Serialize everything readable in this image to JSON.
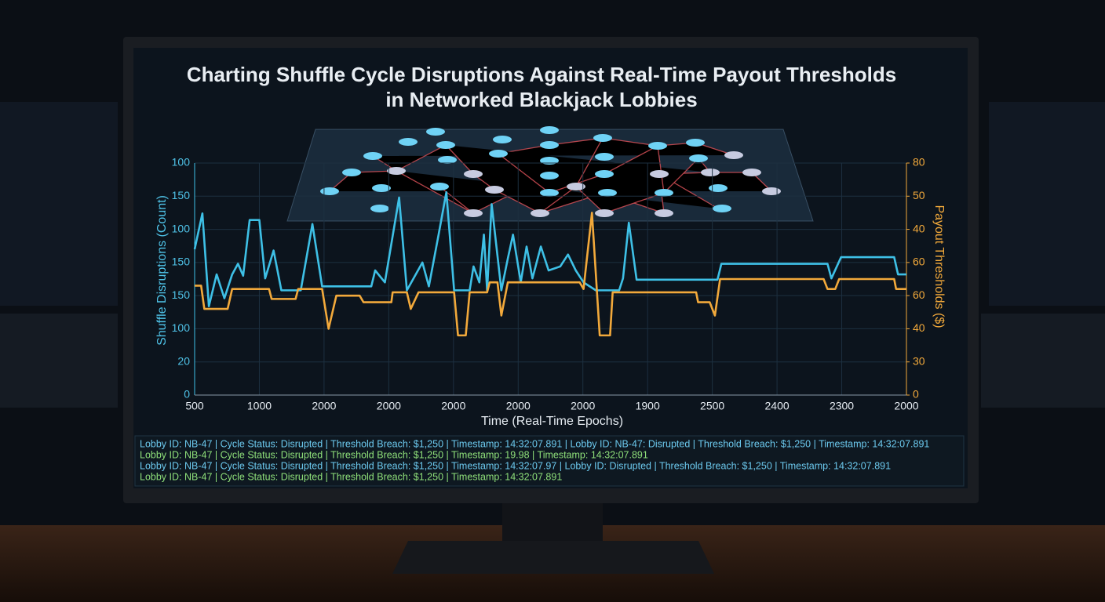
{
  "chart_data": {
    "type": "line",
    "title": "Charting Shuffle Cycle Disruptions Against Real-Time Payout Thresholds",
    "subtitle": "in Networked Blackjack Lobbies",
    "x_label": "Time (Real-Time Epochs)",
    "y_label": "Shuffle Disruptions (Count)",
    "y2_label": "Payout Thresholds ($)",
    "xlim": [
      0,
      11
    ],
    "xticks": [
      {
        "value": 0,
        "label": "500"
      },
      {
        "value": 1,
        "label": "1000"
      },
      {
        "value": 2,
        "label": "2000"
      },
      {
        "value": 3,
        "label": "2000"
      },
      {
        "value": 4,
        "label": "2000"
      },
      {
        "value": 5,
        "label": "2000"
      },
      {
        "value": 6,
        "label": "2000"
      },
      {
        "value": 7,
        "label": "1900"
      },
      {
        "value": 8,
        "label": "2500"
      },
      {
        "value": 9,
        "label": "2400"
      },
      {
        "value": 10,
        "label": "2300"
      },
      {
        "value": 11,
        "label": "2000"
      }
    ],
    "ylim": [
      0,
      175
    ],
    "yticks": [
      0,
      {
        "value": 25,
        "label": "20"
      },
      {
        "value": 50,
        "label": "100"
      },
      {
        "value": 75,
        "label": "150"
      },
      {
        "value": 100,
        "label": "150"
      },
      {
        "value": 125,
        "label": "100"
      },
      {
        "value": 150,
        "label": "150"
      },
      {
        "value": 175,
        "label": "100"
      }
    ],
    "y2lim": [
      0,
      70
    ],
    "y2ticks": [
      0,
      {
        "value": 10,
        "label": "30"
      },
      {
        "value": 20,
        "label": "40"
      },
      {
        "value": 30,
        "label": "60"
      },
      {
        "value": 40,
        "label": "60"
      },
      {
        "value": 50,
        "label": "40"
      },
      {
        "value": 60,
        "label": "50"
      },
      {
        "value": 70,
        "label": "80"
      }
    ],
    "grid": true,
    "series": [
      {
        "color": "#3ec0e6",
        "axis": "y",
        "x": [
          0,
          0.12,
          0.22,
          0.34,
          0.46,
          0.58,
          0.67,
          0.75,
          0.85,
          1.0,
          1.09,
          1.22,
          1.34,
          1.64,
          1.82,
          1.97,
          2.73,
          2.79,
          2.94,
          3.16,
          3.28,
          3.52,
          3.62,
          3.77,
          3.89,
          4.01,
          4.25,
          4.31,
          4.4,
          4.47,
          4.52,
          4.59,
          4.74,
          4.84,
          4.92,
          5.04,
          5.13,
          5.22,
          5.35,
          5.47,
          5.65,
          5.77,
          5.89,
          6.01,
          6.2,
          6.56,
          6.62,
          6.71,
          6.83,
          8.08,
          8.14,
          9.78,
          9.84,
          9.99,
          10.81,
          10.87,
          11
        ],
        "values": [
          110,
          137,
          67,
          91,
          73,
          91,
          99,
          90,
          132,
          132,
          88,
          109,
          79,
          79,
          129,
          82,
          82,
          94,
          85,
          149,
          79,
          100,
          82,
          121,
          153,
          79,
          79,
          97,
          85,
          121,
          79,
          144,
          79,
          103,
          121,
          85,
          112,
          88,
          112,
          94,
          97,
          106,
          94,
          85,
          79,
          79,
          88,
          130,
          87,
          87,
          99,
          99,
          88,
          104,
          104,
          91,
          91
        ]
      },
      {
        "color": "#f2a93b",
        "axis": "y2",
        "x": [
          0,
          0.1,
          0.15,
          0.51,
          0.58,
          1.15,
          1.19,
          1.56,
          1.6,
          1.97,
          2.07,
          2.19,
          2.55,
          2.61,
          3.04,
          3.06,
          3.28,
          3.34,
          3.46,
          4.01,
          4.07,
          4.19,
          4.25,
          4.52,
          4.56,
          4.68,
          4.74,
          4.84,
          5.95,
          6.01,
          6.14,
          6.26,
          6.42,
          6.46,
          7.75,
          7.78,
          7.96,
          8.04,
          8.12,
          9.72,
          9.78,
          9.9,
          9.96,
          10.81,
          10.84,
          11
        ],
        "values": [
          33,
          33,
          26,
          26,
          32,
          32,
          29,
          29,
          32,
          32,
          20,
          30,
          30,
          28,
          28,
          31,
          31,
          26,
          31,
          31,
          18,
          18,
          31,
          31,
          34,
          34,
          24,
          34,
          34,
          32,
          55,
          18,
          18,
          31,
          31,
          28,
          28,
          24,
          35,
          35,
          32,
          32,
          35,
          35,
          32,
          32
        ]
      }
    ],
    "log": {
      "lines": [
        "Lobby ID: NB-47 | Cycle Status: Disrupted | Threshold Breach: $1,250 | Timestamp: 14:32:07.891 | Lobby ID: NB-47: Disrupted | Threshold Breach: $1,250 | Timestamp: 14:32:07.891",
        "Lobby ID: NB-47 | Cycle Status: Disrupted | Threshold Breach: $1,250 | Timestamp: 19.98 | Timestamp: 14:32:07.891",
        "Lobby ID: NB-47 | Cycle Status: Disrupted | Threshold Breach: $1,250 | Timestamp: 14:32:07.97 | Lobby ID: Disrupted | Threshold Breach: $1,250 | Timestamp: 14:32:07.891",
        "Lobby ID: NB-47 | Cycle Status: Disrupted | Threshold Breach: $1,250 | Timestamp: 14:32:07.891"
      ]
    }
  }
}
